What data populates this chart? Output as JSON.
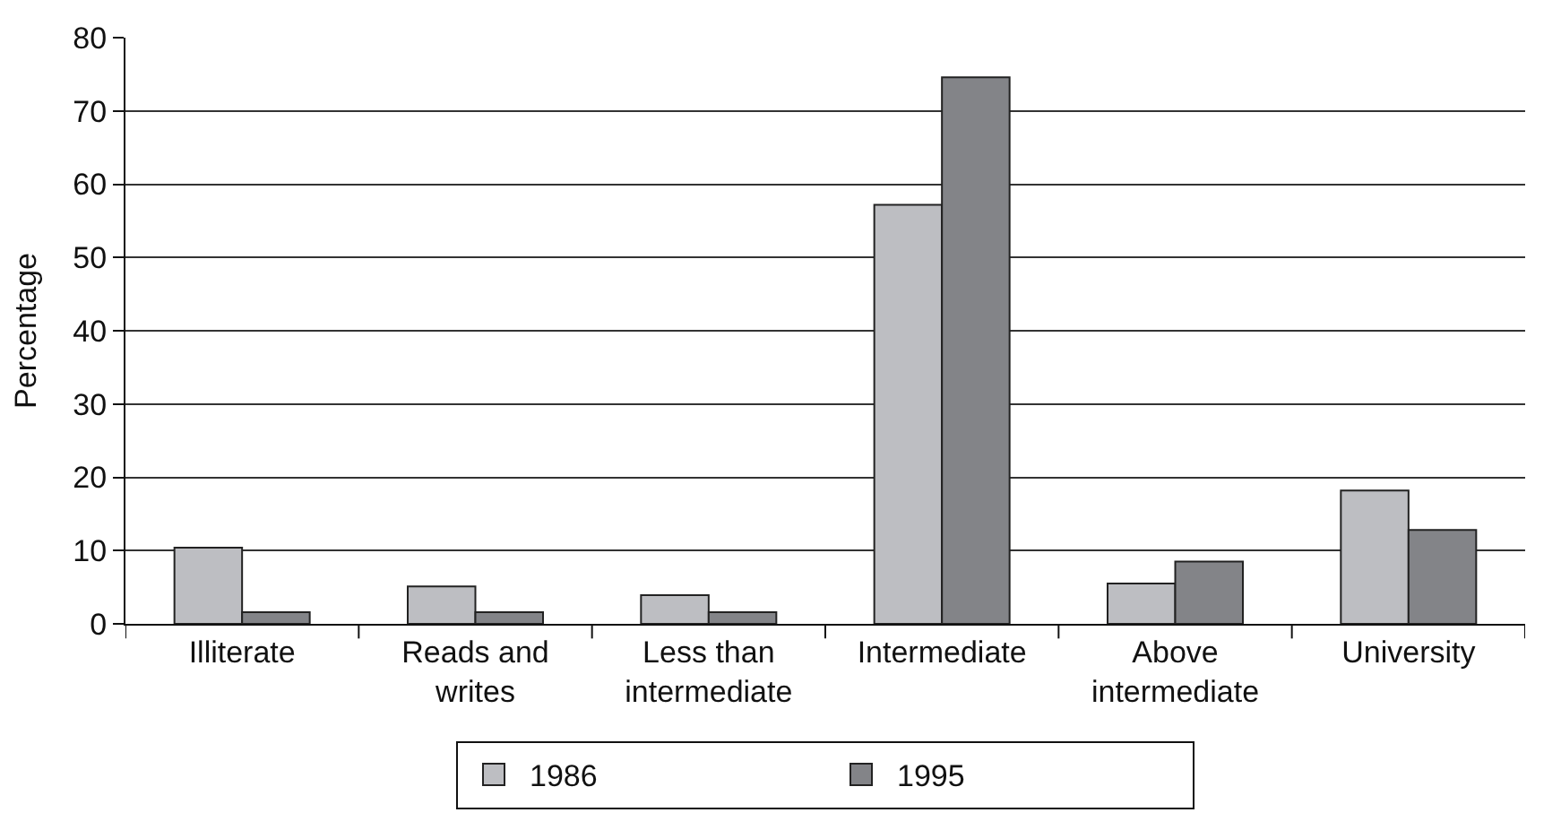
{
  "chart_data": {
    "type": "bar",
    "ylabel": "Percentage",
    "categories": [
      "Illiterate",
      "Reads and\nwrites",
      "Less than\nintermediate",
      "Intermediate",
      "Above\nintermediate",
      "University"
    ],
    "series": [
      {
        "name": "1986",
        "color": "#bdbec2",
        "values": [
          10.4,
          5.1,
          3.9,
          57.2,
          5.5,
          18.2
        ]
      },
      {
        "name": "1995",
        "color": "#838488",
        "values": [
          1.6,
          1.6,
          1.6,
          74.6,
          8.5,
          12.8
        ]
      }
    ],
    "ylim": [
      0,
      80
    ],
    "yticks": [
      0,
      10,
      20,
      30,
      40,
      50,
      60,
      70,
      80
    ],
    "grid": "y",
    "legend": "bottom"
  }
}
